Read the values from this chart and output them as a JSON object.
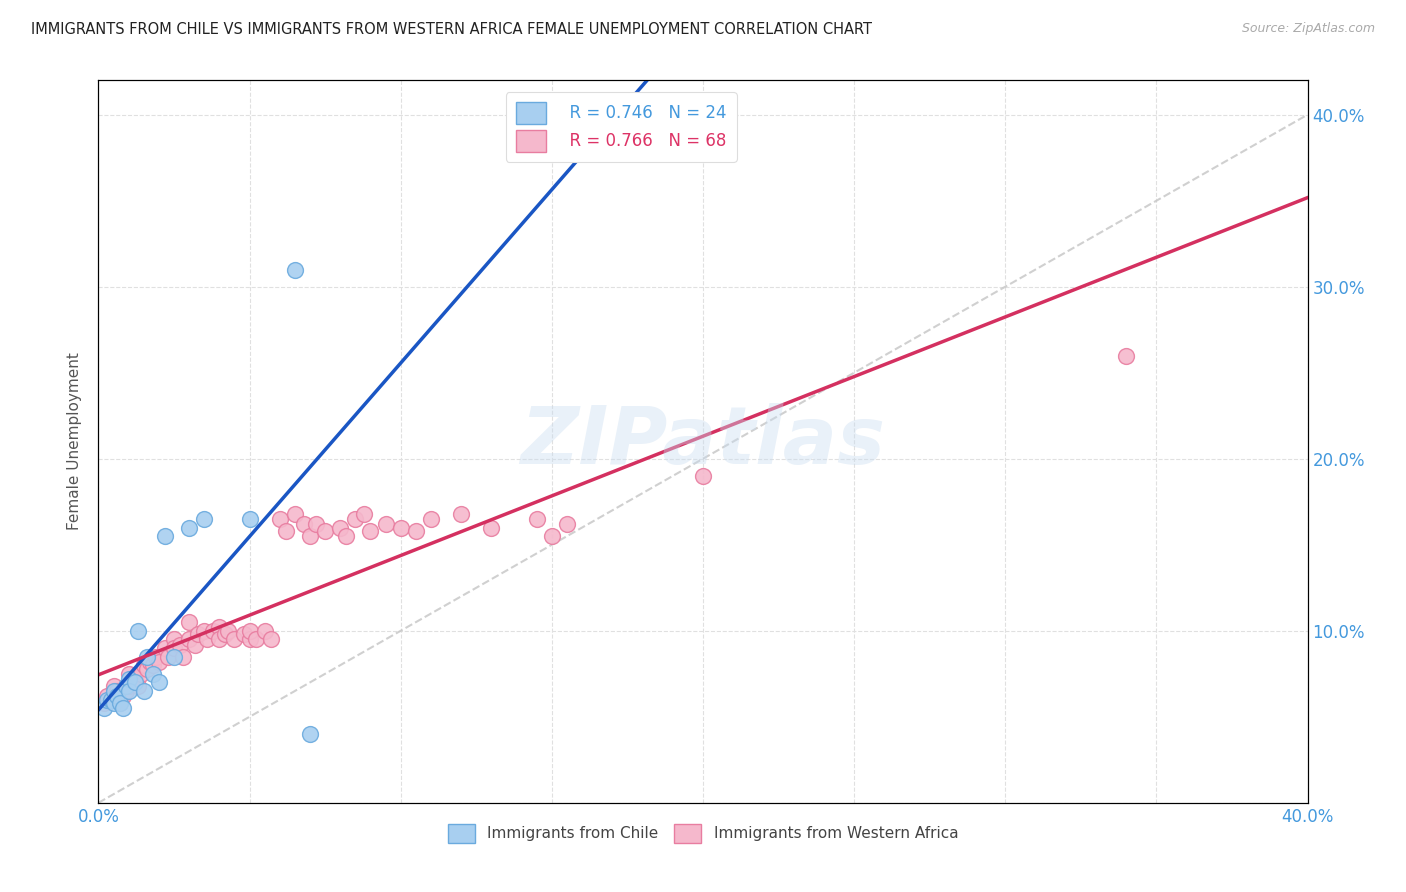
{
  "title": "IMMIGRANTS FROM CHILE VS IMMIGRANTS FROM WESTERN AFRICA FEMALE UNEMPLOYMENT CORRELATION CHART",
  "source": "Source: ZipAtlas.com",
  "ylabel": "Female Unemployment",
  "xlim": [
    0.0,
    0.4
  ],
  "ylim": [
    0.0,
    0.42
  ],
  "watermark_text": "ZIPatlas",
  "chile_color": "#a8cff0",
  "chile_edge_color": "#6aaade",
  "wa_color": "#f5b8cc",
  "wa_edge_color": "#e87da0",
  "chile_line_color": "#1a56c4",
  "wa_line_color": "#d43060",
  "diagonal_color": "#c8c8c8",
  "legend_R1": "R = 0.746",
  "legend_N1": "N = 24",
  "legend_R2": "R = 0.766",
  "legend_N2": "N = 68",
  "tick_color": "#4499dd",
  "grid_color": "#e0e0e0",
  "chile_scatter_x": [
    0.002,
    0.003,
    0.004,
    0.005,
    0.005,
    0.006,
    0.007,
    0.008,
    0.009,
    0.01,
    0.01,
    0.012,
    0.013,
    0.015,
    0.016,
    0.018,
    0.02,
    0.022,
    0.025,
    0.03,
    0.035,
    0.05,
    0.065,
    0.07
  ],
  "chile_scatter_y": [
    0.055,
    0.06,
    0.06,
    0.058,
    0.065,
    0.062,
    0.058,
    0.055,
    0.068,
    0.072,
    0.065,
    0.07,
    0.1,
    0.065,
    0.085,
    0.075,
    0.07,
    0.155,
    0.085,
    0.16,
    0.165,
    0.165,
    0.31,
    0.04
  ],
  "wa_scatter_x": [
    0.002,
    0.003,
    0.004,
    0.005,
    0.005,
    0.006,
    0.007,
    0.008,
    0.009,
    0.01,
    0.01,
    0.011,
    0.012,
    0.013,
    0.014,
    0.015,
    0.016,
    0.017,
    0.018,
    0.019,
    0.02,
    0.022,
    0.023,
    0.025,
    0.025,
    0.027,
    0.028,
    0.03,
    0.03,
    0.032,
    0.033,
    0.035,
    0.036,
    0.038,
    0.04,
    0.04,
    0.042,
    0.043,
    0.045,
    0.048,
    0.05,
    0.05,
    0.052,
    0.055,
    0.057,
    0.06,
    0.062,
    0.065,
    0.068,
    0.07,
    0.072,
    0.075,
    0.08,
    0.082,
    0.085,
    0.088,
    0.09,
    0.095,
    0.1,
    0.105,
    0.11,
    0.12,
    0.13,
    0.145,
    0.15,
    0.155,
    0.2,
    0.34
  ],
  "wa_scatter_y": [
    0.058,
    0.062,
    0.06,
    0.062,
    0.068,
    0.065,
    0.058,
    0.062,
    0.065,
    0.068,
    0.075,
    0.07,
    0.072,
    0.068,
    0.075,
    0.08,
    0.078,
    0.082,
    0.08,
    0.085,
    0.082,
    0.09,
    0.085,
    0.095,
    0.09,
    0.092,
    0.085,
    0.095,
    0.105,
    0.092,
    0.098,
    0.1,
    0.095,
    0.1,
    0.102,
    0.095,
    0.098,
    0.1,
    0.095,
    0.098,
    0.095,
    0.1,
    0.095,
    0.1,
    0.095,
    0.165,
    0.158,
    0.168,
    0.162,
    0.155,
    0.162,
    0.158,
    0.16,
    0.155,
    0.165,
    0.168,
    0.158,
    0.162,
    0.16,
    0.158,
    0.165,
    0.168,
    0.16,
    0.165,
    0.155,
    0.162,
    0.19,
    0.26
  ]
}
